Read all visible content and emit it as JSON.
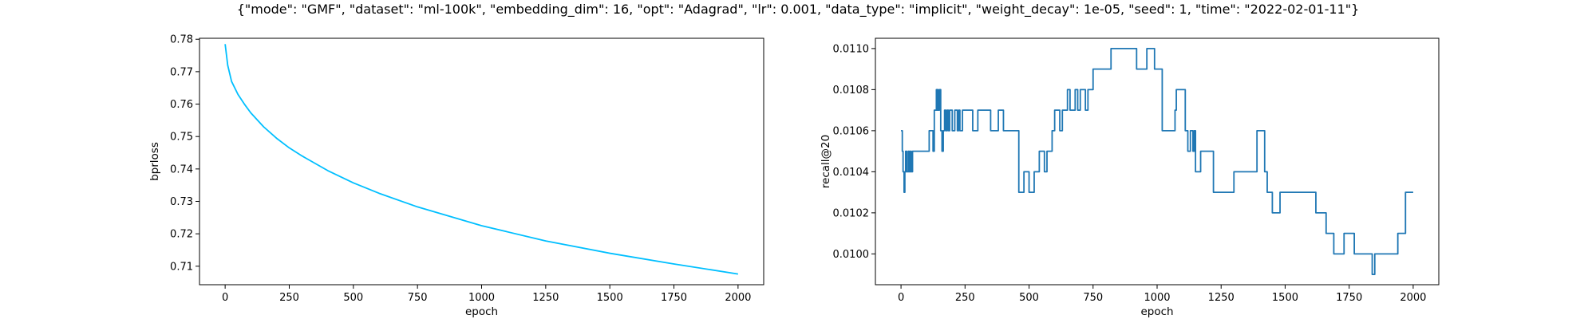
{
  "figure": {
    "title": "{\"mode\": \"GMF\", \"dataset\": \"ml-100k\", \"embedding_dim\": 16, \"opt\": \"Adagrad\", \"lr\": 0.001, \"data_type\": \"implicit\", \"weight_decay\": 1e-05, \"seed\": 1, \"time\": \"2022-02-01-11\"}"
  },
  "chart_data": [
    {
      "type": "line",
      "xlabel": "epoch",
      "ylabel": "bprloss",
      "xlim": [
        -100,
        2100
      ],
      "ylim": [
        0.7043,
        0.7803
      ],
      "xticks": [
        0,
        250,
        500,
        750,
        1000,
        1250,
        1500,
        1750,
        2000
      ],
      "yticks": [
        0.71,
        0.72,
        0.73,
        0.74,
        0.75,
        0.76,
        0.77,
        0.78
      ],
      "ytick_decimals": 2,
      "color": "#00bfff",
      "grid": false,
      "series": [
        {
          "x": [
            0,
            10,
            25,
            50,
            75,
            100,
            150,
            200,
            250,
            300,
            400,
            500,
            600,
            750,
            1000,
            1250,
            1500,
            1750,
            2000
          ],
          "y": [
            0.7785,
            0.772,
            0.767,
            0.763,
            0.76,
            0.7573,
            0.753,
            0.7495,
            0.7465,
            0.744,
            0.7395,
            0.7357,
            0.7325,
            0.7283,
            0.7225,
            0.7178,
            0.714,
            0.7107,
            0.7076
          ]
        }
      ]
    },
    {
      "type": "line",
      "xlabel": "epoch",
      "ylabel": "recall@20",
      "xlim": [
        -100,
        2100
      ],
      "ylim": [
        0.00985,
        0.01105
      ],
      "xticks": [
        0,
        250,
        500,
        750,
        1000,
        1250,
        1500,
        1750,
        2000
      ],
      "yticks": [
        0.01,
        0.0102,
        0.0104,
        0.0106,
        0.0108,
        0.011
      ],
      "ytick_decimals": 4,
      "color": "#1f77b4",
      "grid": false,
      "series": [
        {
          "x": [
            0,
            5,
            8,
            12,
            15,
            18,
            22,
            28,
            32,
            36,
            40,
            45,
            50,
            60,
            70,
            80,
            90,
            100,
            110,
            120,
            125,
            130,
            138,
            140,
            142,
            145,
            150,
            155,
            160,
            165,
            170,
            175,
            180,
            185,
            190,
            200,
            210,
            220,
            225,
            230,
            240,
            250,
            260,
            270,
            280,
            300,
            320,
            350,
            380,
            400,
            420,
            450,
            460,
            470,
            480,
            500,
            520,
            540,
            560,
            570,
            590,
            600,
            610,
            620,
            630,
            640,
            650,
            660,
            670,
            680,
            690,
            700,
            710,
            720,
            730,
            740,
            750,
            760,
            770,
            780,
            800,
            820,
            850,
            870,
            880,
            900,
            920,
            940,
            960,
            980,
            990,
            1000,
            1010,
            1020,
            1030,
            1040,
            1050,
            1060,
            1070,
            1075,
            1080,
            1090,
            1100,
            1110,
            1120,
            1130,
            1140,
            1145,
            1150,
            1160,
            1170,
            1180,
            1190,
            1200,
            1220,
            1240,
            1260,
            1280,
            1300,
            1320,
            1330,
            1340,
            1350,
            1370,
            1390,
            1400,
            1410,
            1420,
            1430,
            1440,
            1450,
            1460,
            1470,
            1480,
            1490,
            1500,
            1530,
            1560,
            1600,
            1620,
            1640,
            1660,
            1680,
            1690,
            1700,
            1710,
            1720,
            1730,
            1740,
            1750,
            1760,
            1770,
            1780,
            1800,
            1820,
            1830,
            1835,
            1840,
            1850,
            1860,
            1880,
            1900,
            1920,
            1940,
            1950,
            1960,
            1970,
            1980,
            1990,
            2000
          ],
          "y": [
            0.0106,
            0.0105,
            0.0104,
            0.0103,
            0.0104,
            0.0105,
            0.0104,
            0.0105,
            0.0104,
            0.0105,
            0.0104,
            0.0105,
            0.0105,
            0.0105,
            0.0105,
            0.0105,
            0.0105,
            0.0105,
            0.0106,
            0.0106,
            0.0105,
            0.0107,
            0.0108,
            0.0107,
            0.0108,
            0.0107,
            0.0108,
            0.0106,
            0.0105,
            0.0106,
            0.0107,
            0.0106,
            0.0107,
            0.0106,
            0.0107,
            0.0106,
            0.0107,
            0.0106,
            0.0107,
            0.0106,
            0.0107,
            0.0107,
            0.0107,
            0.0107,
            0.0106,
            0.0107,
            0.0107,
            0.0106,
            0.0107,
            0.0106,
            0.0106,
            0.0106,
            0.0103,
            0.0103,
            0.0104,
            0.0103,
            0.0104,
            0.0105,
            0.0104,
            0.0105,
            0.0106,
            0.0107,
            0.0107,
            0.0106,
            0.0107,
            0.0107,
            0.0108,
            0.0107,
            0.0107,
            0.0108,
            0.0107,
            0.0108,
            0.0108,
            0.0107,
            0.0108,
            0.0108,
            0.0109,
            0.0109,
            0.0109,
            0.0109,
            0.0109,
            0.011,
            0.011,
            0.011,
            0.011,
            0.011,
            0.0109,
            0.0109,
            0.011,
            0.011,
            0.0109,
            0.0109,
            0.0109,
            0.0106,
            0.0106,
            0.0106,
            0.0106,
            0.0106,
            0.0107,
            0.0108,
            0.0108,
            0.0108,
            0.0108,
            0.0106,
            0.0105,
            0.0106,
            0.0105,
            0.0106,
            0.0104,
            0.0104,
            0.0105,
            0.0105,
            0.0105,
            0.0105,
            0.0103,
            0.0103,
            0.0103,
            0.0103,
            0.0104,
            0.0104,
            0.0104,
            0.0104,
            0.0104,
            0.0104,
            0.0106,
            0.0106,
            0.0106,
            0.0104,
            0.0103,
            0.0103,
            0.0102,
            0.0102,
            0.0102,
            0.0103,
            0.0103,
            0.0103,
            0.0103,
            0.0103,
            0.0103,
            0.0102,
            0.0102,
            0.0101,
            0.0101,
            0.01,
            0.01,
            0.01,
            0.01,
            0.0101,
            0.0101,
            0.0101,
            0.0101,
            0.01,
            0.01,
            0.01,
            0.01,
            0.01,
            0.01,
            0.0099,
            0.01,
            0.01,
            0.01,
            0.01,
            0.01,
            0.0101,
            0.0101,
            0.0101,
            0.0103,
            0.0103,
            0.0103,
            0.0103
          ]
        }
      ]
    }
  ]
}
